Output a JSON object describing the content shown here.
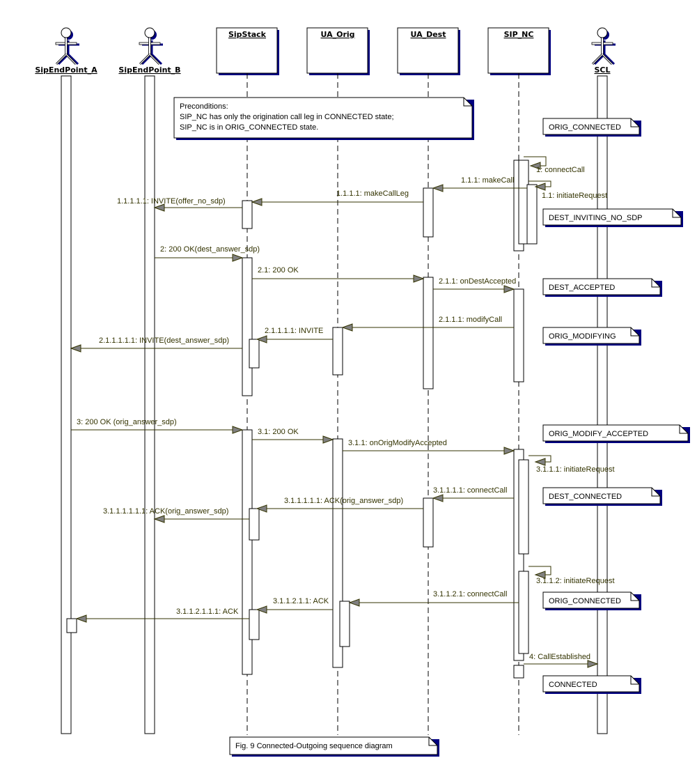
{
  "participants": [
    {
      "name": "SipEndPoint_A",
      "kind": "actor"
    },
    {
      "name": "SipEndPoint_B",
      "kind": "actor"
    },
    {
      "name": "SipStack",
      "kind": "object"
    },
    {
      "name": "UA_Orig",
      "kind": "object"
    },
    {
      "name": "UA_Dest",
      "kind": "object"
    },
    {
      "name": "SIP_NC",
      "kind": "object"
    },
    {
      "name": "SCL",
      "kind": "actor"
    }
  ],
  "preconditions": [
    "Preconditions:",
    "SIP_NC has only the origination call leg in CONNECTED state;",
    "SIP_NC is in ORIG_CONNECTED state."
  ],
  "messages": [
    "1: connectCall",
    "1.1: initiateRequest",
    "1.1.1: makeCall",
    "1.1.1.1: makeCallLeg",
    "1.1.1.1.1: INVITE(offer_no_sdp)",
    "2: 200 OK(dest_answer_sdp)",
    "2.1: 200 OK",
    "2.1.1: onDestAccepted",
    "2.1.1.1: modifyCall",
    "2.1.1.1.1: INVITE",
    "2.1.1.1.1.1: INVITE(dest_answer_sdp)",
    "3: 200 OK (orig_answer_sdp)",
    "3.1: 200 OK",
    "3.1.1: onOrigModifyAccepted",
    "3.1.1.1: initiateRequest",
    "3.1.1.1.1: connectCall",
    "3.1.1.1.1.1: ACK(orig_answer_sdp)",
    "3.1.1.1.1.1.1: ACK(orig_answer_sdp)",
    "3.1.1.2: initiateRequest",
    "3.1.1.2.1: connectCall",
    "3.1.1.2.1.1: ACK",
    "3.1.1.2.1.1.1: ACK",
    "4: CallEstablished"
  ],
  "state_notes": [
    "ORIG_CONNECTED",
    "DEST_INVITING_NO_SDP",
    "DEST_ACCEPTED",
    "ORIG_MODIFYING",
    "ORIG_MODIFY_ACCEPTED",
    "DEST_CONNECTED",
    "ORIG_CONNECTED",
    "CONNECTED"
  ],
  "caption": "Fig. 9 Connected-Outgoing sequence diagram",
  "colors": {
    "shadow": "#000080",
    "message": "#333300",
    "arrowhead": "#808080"
  }
}
